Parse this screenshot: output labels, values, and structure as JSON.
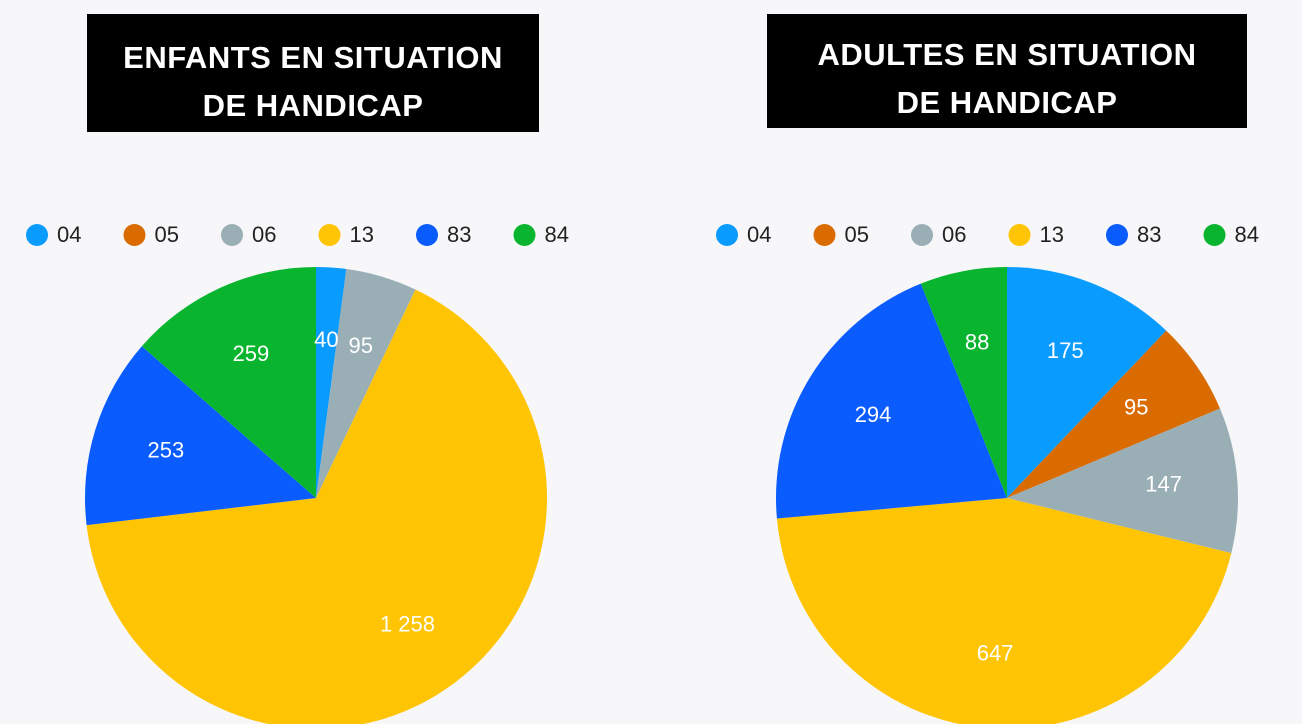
{
  "chart_data": [
    {
      "type": "pie",
      "title": "ENFANTS EN SITUATION DE HANDICAP",
      "categories": [
        "04",
        "05",
        "06",
        "13",
        "83",
        "84"
      ],
      "values": [
        40,
        0,
        95,
        1258,
        253,
        259
      ],
      "value_labels": [
        "40",
        null,
        "95",
        "1 258",
        "253",
        "259"
      ],
      "colors": [
        "#0a9bff",
        "#d96b00",
        "#9aaeb6",
        "#ffc403",
        "#0a5cff",
        "#09b52f"
      ],
      "legend": "top"
    },
    {
      "type": "pie",
      "title": "ADULTES EN SITUATION DE HANDICAP",
      "categories": [
        "04",
        "05",
        "06",
        "13",
        "83",
        "84"
      ],
      "values": [
        175,
        95,
        147,
        647,
        294,
        88
      ],
      "colors": [
        "#0a9bff",
        "#d96b00",
        "#9aaeb6",
        "#ffc403",
        "#0a5cff",
        "#09b52f"
      ],
      "legend": "top"
    }
  ]
}
